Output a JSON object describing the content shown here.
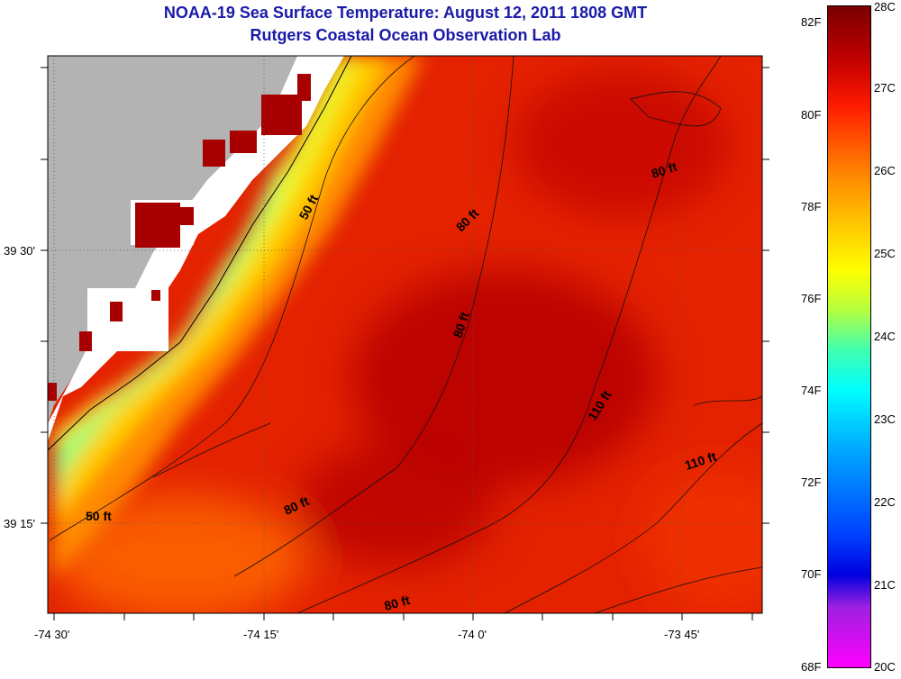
{
  "title_line1": "NOAA-19 Sea Surface Temperature:  August 12, 2011 1808 GMT",
  "title_line2": "Rutgers Coastal Ocean Observation Lab",
  "y_labels": [
    "39 30'",
    "39 15'"
  ],
  "x_labels": [
    "-74 30'",
    "-74 15'",
    "-74 0'",
    "-73 45'"
  ],
  "depth_labels": [
    "50 ft",
    "50 ft",
    "80 ft",
    "80 ft",
    "80 ft",
    "80 ft",
    "80 ft",
    "110 ft",
    "110 ft"
  ],
  "colorbar": {
    "fahrenheit": [
      "82F",
      "80F",
      "78F",
      "76F",
      "74F",
      "72F",
      "70F",
      "68F"
    ],
    "celsius": [
      "28C",
      "27C",
      "26C",
      "25C",
      "24C",
      "23C",
      "22C",
      "21C",
      "20C"
    ]
  },
  "colors": {
    "land": "#b3b3b3",
    "title": "#1a1aa8",
    "ocean_warm": "#e82000",
    "ocean_hot": "#a80000"
  }
}
